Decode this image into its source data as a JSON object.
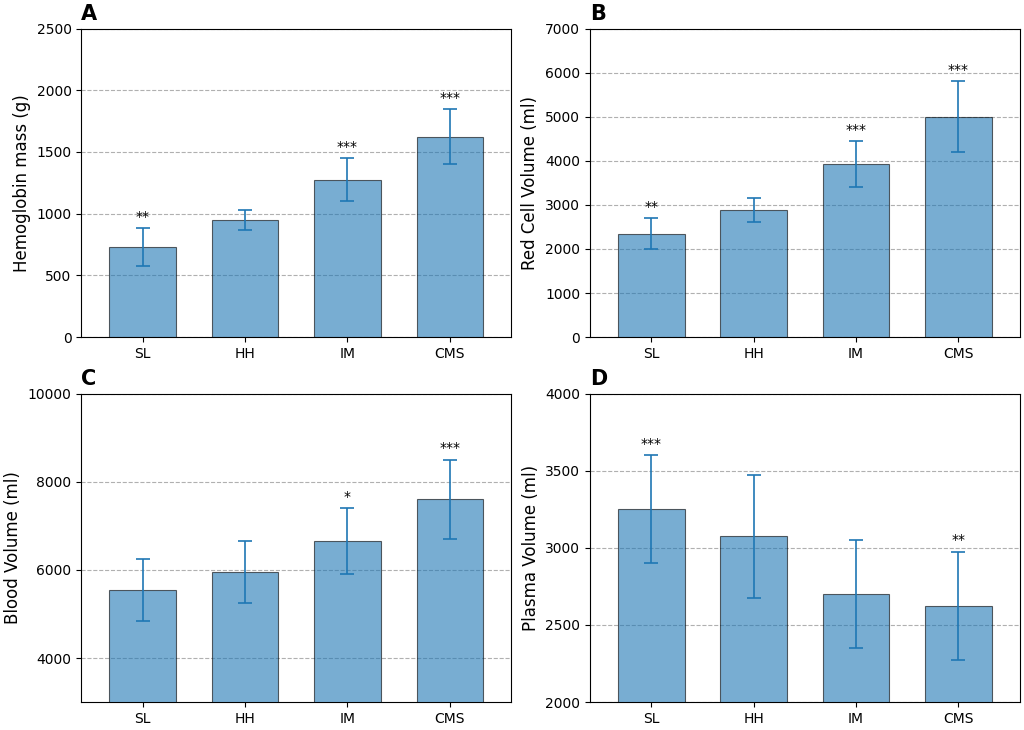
{
  "chart_data": [
    {
      "type": "bar",
      "title": "A",
      "y_label": "Hemoglobin mass (g)",
      "categories": [
        "SL",
        "HH",
        "IM",
        "CMS"
      ],
      "values": [
        730,
        950,
        1275,
        1625
      ],
      "errors": [
        150,
        80,
        175,
        225
      ],
      "annotations": [
        {
          "category": "SL",
          "text": "**"
        },
        {
          "category": "IM",
          "text": "***"
        },
        {
          "category": "CMS",
          "text": "***"
        }
      ],
      "ylim": [
        0,
        2500
      ],
      "yticks": [
        0,
        500,
        1000,
        1500,
        2000,
        2500
      ],
      "grid": true
    },
    {
      "type": "bar",
      "title": "B",
      "y_label": "Red Cell Volume (ml)",
      "categories": [
        "SL",
        "HH",
        "IM",
        "CMS"
      ],
      "values": [
        2350,
        2875,
        3925,
        5000
      ],
      "errors": [
        350,
        275,
        525,
        800
      ],
      "annotations": [
        {
          "category": "SL",
          "text": "**"
        },
        {
          "category": "IM",
          "text": "***"
        },
        {
          "category": "CMS",
          "text": "***"
        }
      ],
      "ylim": [
        0,
        7000
      ],
      "yticks": [
        0,
        1000,
        2000,
        3000,
        4000,
        5000,
        6000,
        7000
      ],
      "grid": true
    },
    {
      "type": "bar",
      "title": "C",
      "y_label": "Blood Volume (ml)",
      "categories": [
        "SL",
        "HH",
        "IM",
        "CMS"
      ],
      "values": [
        5550,
        5950,
        6650,
        7600
      ],
      "errors": [
        700,
        700,
        750,
        900
      ],
      "annotations": [
        {
          "category": "IM",
          "text": "*"
        },
        {
          "category": "CMS",
          "text": "***"
        }
      ],
      "ylim": [
        3000,
        10000
      ],
      "yticks": [
        4000,
        6000,
        8000,
        10000
      ],
      "grid": true
    },
    {
      "type": "bar",
      "title": "D",
      "y_label": "Plasma Volume (ml)",
      "categories": [
        "SL",
        "HH",
        "IM",
        "CMS"
      ],
      "values": [
        3250,
        3075,
        2700,
        2625
      ],
      "errors": [
        350,
        400,
        350,
        350
      ],
      "annotations": [
        {
          "category": "SL",
          "text": "***"
        },
        {
          "category": "CMS",
          "text": "**"
        }
      ],
      "ylim": [
        2000,
        4000
      ],
      "yticks": [
        2000,
        2500,
        3000,
        3500,
        4000
      ],
      "grid": true
    }
  ]
}
